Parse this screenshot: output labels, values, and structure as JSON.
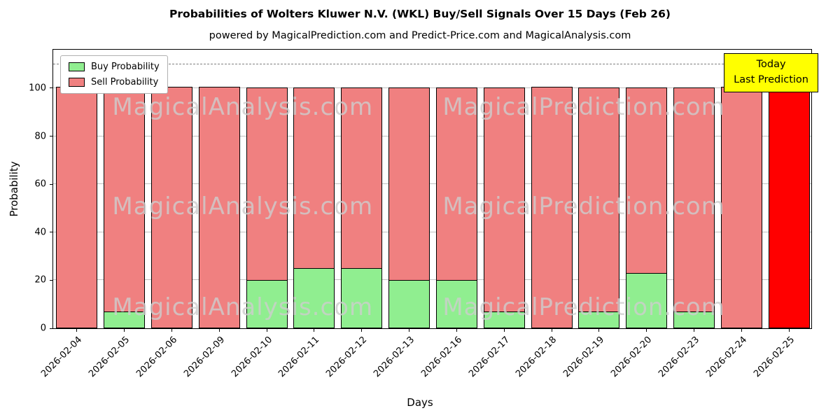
{
  "title": "Probabilities of Wolters Kluwer N.V. (WKL) Buy/Sell Signals Over 15 Days (Feb 26)",
  "subtitle": "powered by MagicalPrediction.com and Predict-Price.com and MagicalAnalysis.com",
  "legend": {
    "buy_label": "Buy Probability",
    "sell_label": "Sell Probability"
  },
  "annotation": {
    "line1": "Today",
    "line2": "Last Prediction",
    "bg_color": "#ffff00"
  },
  "watermarks": [
    "MagicalAnalysis.com",
    "MagicalPrediction.com"
  ],
  "chart_data": {
    "type": "bar",
    "stacked": true,
    "title": "Probabilities of Wolters Kluwer N.V. (WKL) Buy/Sell Signals Over 15 Days (Feb 26)",
    "xlabel": "Days",
    "ylabel": "Probability",
    "ylim": [
      0,
      116
    ],
    "yticks": [
      0,
      20,
      40,
      60,
      80,
      100
    ],
    "grid": true,
    "legend_position": "upper left",
    "dashed_line_y": 110,
    "categories": [
      "2026-02-04",
      "2026-02-05",
      "2026-02-06",
      "2026-02-09",
      "2026-02-10",
      "2026-02-11",
      "2026-02-12",
      "2026-02-13",
      "2026-02-16",
      "2026-02-17",
      "2026-02-18",
      "2026-02-19",
      "2026-02-20",
      "2026-02-23",
      "2026-02-24",
      "2026-02-25"
    ],
    "series": [
      {
        "name": "Buy Probability",
        "color": "#90ee90",
        "values": [
          0,
          7,
          0,
          0,
          20,
          25,
          25,
          20,
          20,
          7,
          0,
          7,
          23,
          7,
          0,
          0
        ]
      },
      {
        "name": "Sell Probability",
        "color": "#f08080",
        "values": [
          100,
          93,
          100,
          100,
          80,
          75,
          75,
          80,
          80,
          93,
          100,
          93,
          77,
          93,
          100,
          100
        ]
      }
    ],
    "buy_color": "#90ee90",
    "sell_color": "#f08080",
    "today_bar_color": "#ff0000",
    "today_bar_index": 15
  }
}
